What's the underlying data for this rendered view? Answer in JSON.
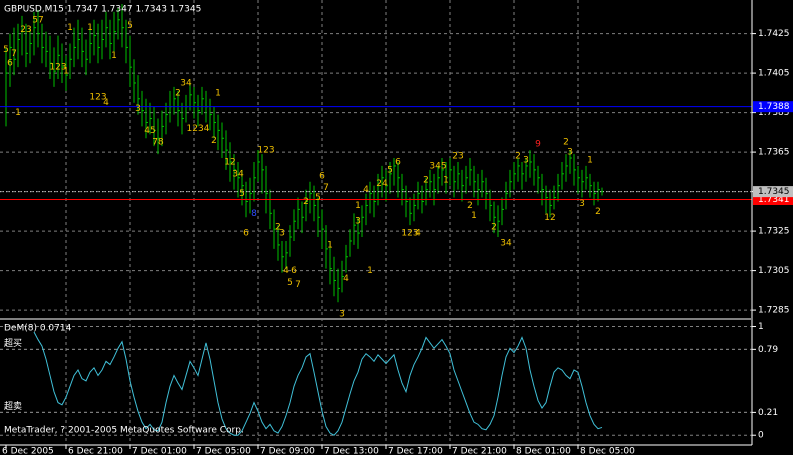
{
  "chart_data": [
    {
      "type": "ohlc",
      "title": "GBPUSD,M15  1.7347 1.7347 1.7343 1.7345",
      "color": "#00c000",
      "grid": true,
      "ylim": [
        1.7281,
        1.7441
      ],
      "yticks": [
        1.7425,
        1.7405,
        1.7385,
        1.7365,
        1.7345,
        1.7325,
        1.7305,
        1.7285
      ],
      "high": [
        1.7418,
        1.7425,
        1.7428,
        1.743,
        1.7434,
        1.743,
        1.7428,
        1.7436,
        1.7437,
        1.743,
        1.7426,
        1.7424,
        1.7418,
        1.7424,
        1.742,
        1.7414,
        1.742,
        1.7428,
        1.7432,
        1.7428,
        1.7422,
        1.7428,
        1.7432,
        1.743,
        1.7432,
        1.7436,
        1.7432,
        1.7436,
        1.7438,
        1.744,
        1.7432,
        1.7424,
        1.7412,
        1.7404,
        1.7396,
        1.7392,
        1.739,
        1.7388,
        1.7382,
        1.7386,
        1.739,
        1.7396,
        1.7398,
        1.7396,
        1.739,
        1.7394,
        1.74,
        1.7398,
        1.7394,
        1.7398,
        1.7396,
        1.7392,
        1.7388,
        1.7384,
        1.738,
        1.7376,
        1.737,
        1.7364,
        1.736,
        1.7356,
        1.735,
        1.7352,
        1.736,
        1.7366,
        1.7364,
        1.7358,
        1.7346,
        1.7336,
        1.7328,
        1.732,
        1.732,
        1.7328,
        1.7336,
        1.7342,
        1.734,
        1.7346,
        1.735,
        1.7348,
        1.7342,
        1.7336,
        1.7328,
        1.732,
        1.7312,
        1.7306,
        1.731,
        1.7318,
        1.7326,
        1.7334,
        1.7332,
        1.7338,
        1.7344,
        1.735,
        1.7348,
        1.7354,
        1.7358,
        1.7356,
        1.736,
        1.7362,
        1.736,
        1.7354,
        1.7348,
        1.7342,
        1.7344,
        1.735,
        1.7348,
        1.7352,
        1.7356,
        1.7354,
        1.7358,
        1.7362,
        1.736,
        1.7362,
        1.7358,
        1.736,
        1.7356,
        1.7358,
        1.7362,
        1.7358,
        1.7354,
        1.7356,
        1.7352,
        1.7346,
        1.734,
        1.7338,
        1.7342,
        1.735,
        1.7356,
        1.736,
        1.7362,
        1.736,
        1.7362,
        1.7366,
        1.7364,
        1.7358,
        1.7354,
        1.7348,
        1.7346,
        1.7348,
        1.7354,
        1.736,
        1.7364,
        1.7366,
        1.7364,
        1.7358,
        1.7356,
        1.7358,
        1.7354,
        1.735,
        1.735,
        1.7347
      ],
      "low": [
        1.7378,
        1.7398,
        1.7404,
        1.7408,
        1.7414,
        1.7408,
        1.741,
        1.7414,
        1.7418,
        1.741,
        1.7408,
        1.7402,
        1.7398,
        1.7402,
        1.74,
        1.7396,
        1.7402,
        1.7408,
        1.7412,
        1.7408,
        1.7404,
        1.741,
        1.7414,
        1.741,
        1.7412,
        1.7418,
        1.7412,
        1.7416,
        1.7422,
        1.7418,
        1.741,
        1.7398,
        1.739,
        1.7384,
        1.7378,
        1.7372,
        1.7374,
        1.7368,
        1.7364,
        1.7368,
        1.7374,
        1.738,
        1.7384,
        1.7378,
        1.7374,
        1.738,
        1.7386,
        1.7382,
        1.7378,
        1.7384,
        1.738,
        1.7376,
        1.7372,
        1.7366,
        1.7362,
        1.7356,
        1.735,
        1.7346,
        1.7342,
        1.7338,
        1.7332,
        1.7334,
        1.734,
        1.735,
        1.7344,
        1.7334,
        1.7326,
        1.7316,
        1.731,
        1.7304,
        1.7306,
        1.7312,
        1.732,
        1.7326,
        1.7324,
        1.733,
        1.7334,
        1.733,
        1.7322,
        1.7316,
        1.7306,
        1.7298,
        1.7292,
        1.7289,
        1.7294,
        1.7304,
        1.7312,
        1.7318,
        1.7316,
        1.7322,
        1.7328,
        1.7334,
        1.7332,
        1.7338,
        1.7342,
        1.734,
        1.7344,
        1.7348,
        1.7342,
        1.7338,
        1.7332,
        1.7328,
        1.733,
        1.7336,
        1.7334,
        1.7338,
        1.7342,
        1.7338,
        1.7344,
        1.7348,
        1.7344,
        1.7348,
        1.7342,
        1.7346,
        1.734,
        1.7344,
        1.7348,
        1.7342,
        1.7338,
        1.7342,
        1.7336,
        1.733,
        1.7324,
        1.7322,
        1.7328,
        1.7336,
        1.7342,
        1.7346,
        1.735,
        1.7346,
        1.735,
        1.7352,
        1.7348,
        1.7344,
        1.7338,
        1.7334,
        1.7332,
        1.7336,
        1.734,
        1.7346,
        1.735,
        1.7354,
        1.7348,
        1.7344,
        1.7342,
        1.7346,
        1.7342,
        1.7338,
        1.734,
        1.7343
      ],
      "close": [
        1.7405,
        1.7418,
        1.7412,
        1.7422,
        1.7426,
        1.7415,
        1.742,
        1.7428,
        1.7425,
        1.7418,
        1.7416,
        1.741,
        1.7406,
        1.7414,
        1.7408,
        1.7404,
        1.7412,
        1.7418,
        1.7422,
        1.7416,
        1.7412,
        1.742,
        1.7424,
        1.7418,
        1.7422,
        1.7428,
        1.742,
        1.7426,
        1.7432,
        1.7428,
        1.7418,
        1.7408,
        1.74,
        1.7392,
        1.7386,
        1.738,
        1.7382,
        1.7376,
        1.7372,
        1.7378,
        1.7384,
        1.7388,
        1.7392,
        1.7386,
        1.7382,
        1.7388,
        1.7394,
        1.739,
        1.7386,
        1.7392,
        1.7388,
        1.7384,
        1.738,
        1.7376,
        1.7372,
        1.7366,
        1.736,
        1.7356,
        1.7352,
        1.7348,
        1.734,
        1.7344,
        1.7352,
        1.736,
        1.7356,
        1.7344,
        1.7334,
        1.7326,
        1.7318,
        1.7312,
        1.7314,
        1.7322,
        1.733,
        1.7336,
        1.7332,
        1.734,
        1.7344,
        1.7338,
        1.7332,
        1.7326,
        1.7316,
        1.7306,
        1.73,
        1.7296,
        1.7302,
        1.7312,
        1.732,
        1.7328,
        1.7324,
        1.7332,
        1.7338,
        1.7344,
        1.734,
        1.7348,
        1.7352,
        1.7348,
        1.7354,
        1.7358,
        1.7352,
        1.7346,
        1.734,
        1.7334,
        1.7338,
        1.7344,
        1.734,
        1.7346,
        1.735,
        1.7346,
        1.7352,
        1.7356,
        1.7352,
        1.7356,
        1.735,
        1.7354,
        1.7348,
        1.7352,
        1.7356,
        1.735,
        1.7346,
        1.735,
        1.7344,
        1.7338,
        1.7332,
        1.733,
        1.7336,
        1.7344,
        1.735,
        1.7354,
        1.7358,
        1.7354,
        1.7358,
        1.736,
        1.7356,
        1.7352,
        1.7346,
        1.7342,
        1.7338,
        1.7342,
        1.7348,
        1.7354,
        1.7358,
        1.7362,
        1.7356,
        1.7352,
        1.735,
        1.7352,
        1.7348,
        1.7344,
        1.7346,
        1.7345
      ],
      "hlines": [
        {
          "value": 1.7388,
          "label": "1.7388",
          "color": "#0000ff",
          "label_color": "#ffffff"
        },
        {
          "value": 1.7341,
          "label": "1.7341",
          "color": "#ff0000",
          "label_color": "#ffffff"
        },
        {
          "value": 1.7345,
          "label": "1.7345",
          "color": "#c0c0c0",
          "label_color": "#000000"
        }
      ],
      "annotation_color": "#f0c000",
      "annotations": [
        {
          "text": "23",
          "x": 5,
          "y": 1.7427
        },
        {
          "text": "57",
          "x": 8,
          "y": 1.7432
        },
        {
          "text": "5",
          "x": 0,
          "y": 1.7417
        },
        {
          "text": "7",
          "x": 2,
          "y": 1.7415
        },
        {
          "text": "6",
          "x": 1,
          "y": 1.741
        },
        {
          "text": "1",
          "x": 3,
          "y": 1.7385
        },
        {
          "text": "1",
          "x": 16,
          "y": 1.7428
        },
        {
          "text": "1",
          "x": 21,
          "y": 1.7428
        },
        {
          "text": "123",
          "x": 13,
          "y": 1.7408
        },
        {
          "text": "1",
          "x": 15,
          "y": 1.7406
        },
        {
          "text": "123",
          "x": 23,
          "y": 1.7393
        },
        {
          "text": "4",
          "x": 25,
          "y": 1.739
        },
        {
          "text": "1",
          "x": 27,
          "y": 1.7414
        },
        {
          "text": "5",
          "x": 31,
          "y": 1.7429
        },
        {
          "text": "3",
          "x": 33,
          "y": 1.7387
        },
        {
          "text": "45",
          "x": 36,
          "y": 1.7376
        },
        {
          "text": "78",
          "x": 38,
          "y": 1.737
        },
        {
          "text": "2",
          "x": 43,
          "y": 1.7395
        },
        {
          "text": "34",
          "x": 45,
          "y": 1.74
        },
        {
          "text": "1234",
          "x": 48,
          "y": 1.7377
        },
        {
          "text": "1",
          "x": 53,
          "y": 1.7395
        },
        {
          "text": "2",
          "x": 52,
          "y": 1.7371
        },
        {
          "text": "12",
          "x": 56,
          "y": 1.736
        },
        {
          "text": "34",
          "x": 58,
          "y": 1.7354
        },
        {
          "text": "123",
          "x": 65,
          "y": 1.7366
        },
        {
          "text": "5",
          "x": 59,
          "y": 1.7344
        },
        {
          "text": "8",
          "x": 62,
          "y": 1.7334,
          "color": "#3050ff"
        },
        {
          "text": "6",
          "x": 60,
          "y": 1.7324
        },
        {
          "text": "2",
          "x": 68,
          "y": 1.7327
        },
        {
          "text": "3",
          "x": 69,
          "y": 1.7324
        },
        {
          "text": "4",
          "x": 70,
          "y": 1.7305
        },
        {
          "text": "5",
          "x": 71,
          "y": 1.7299
        },
        {
          "text": "6",
          "x": 72,
          "y": 1.7305
        },
        {
          "text": "7",
          "x": 73,
          "y": 1.7298
        },
        {
          "text": "2",
          "x": 75,
          "y": 1.734
        },
        {
          "text": "5",
          "x": 78,
          "y": 1.7342
        },
        {
          "text": "6",
          "x": 79,
          "y": 1.7353
        },
        {
          "text": "7",
          "x": 80,
          "y": 1.7347
        },
        {
          "text": "1",
          "x": 81,
          "y": 1.7318
        },
        {
          "text": "3",
          "x": 84,
          "y": 1.7283
        },
        {
          "text": "4",
          "x": 85,
          "y": 1.7301
        },
        {
          "text": "1",
          "x": 88,
          "y": 1.7338
        },
        {
          "text": "3",
          "x": 88,
          "y": 1.733
        },
        {
          "text": "1",
          "x": 91,
          "y": 1.7305
        },
        {
          "text": "4",
          "x": 90,
          "y": 1.7346
        },
        {
          "text": "24",
          "x": 94,
          "y": 1.7349
        },
        {
          "text": "5",
          "x": 96,
          "y": 1.7356
        },
        {
          "text": "6",
          "x": 98,
          "y": 1.736
        },
        {
          "text": "123",
          "x": 101,
          "y": 1.7324
        },
        {
          "text": "4",
          "x": 103,
          "y": 1.7324
        },
        {
          "text": "2",
          "x": 105,
          "y": 1.7351
        },
        {
          "text": "345",
          "x": 108,
          "y": 1.7358
        },
        {
          "text": "1",
          "x": 110,
          "y": 1.7351
        },
        {
          "text": "23",
          "x": 113,
          "y": 1.7363
        },
        {
          "text": "2",
          "x": 116,
          "y": 1.7338
        },
        {
          "text": "1",
          "x": 117,
          "y": 1.7333
        },
        {
          "text": "2",
          "x": 122,
          "y": 1.7327
        },
        {
          "text": "34",
          "x": 125,
          "y": 1.7319
        },
        {
          "text": "2",
          "x": 128,
          "y": 1.7363
        },
        {
          "text": "3",
          "x": 130,
          "y": 1.7361
        },
        {
          "text": "9",
          "x": 133,
          "y": 1.7369,
          "color": "#ff2020"
        },
        {
          "text": "12",
          "x": 136,
          "y": 1.7332
        },
        {
          "text": "2",
          "x": 140,
          "y": 1.737
        },
        {
          "text": "3",
          "x": 141,
          "y": 1.7365
        },
        {
          "text": "3",
          "x": 144,
          "y": 1.7339
        },
        {
          "text": "1",
          "x": 146,
          "y": 1.7361
        },
        {
          "text": "2",
          "x": 148,
          "y": 1.7335
        }
      ]
    },
    {
      "type": "line",
      "title": "DeM(8) 0.0714",
      "color": "#40c0d8",
      "grid": true,
      "ylim": [
        -0.09,
        1.06
      ],
      "yticks": [
        1,
        0.79,
        0.21,
        0
      ],
      "levels": [
        {
          "value": 0.79,
          "label": "超买"
        },
        {
          "value": 0.21,
          "label": "超卖"
        }
      ],
      "categories": [
        "6 Dec 2005",
        null,
        null,
        null,
        null,
        null,
        null,
        null,
        null,
        null,
        null,
        null,
        null,
        null,
        null,
        "6 Dec 21:00",
        null,
        null,
        null,
        null,
        null,
        null,
        null,
        null,
        null,
        null,
        null,
        null,
        null,
        null,
        null,
        "7 Dec 01:00",
        null,
        null,
        null,
        null,
        null,
        null,
        null,
        null,
        null,
        null,
        null,
        null,
        null,
        null,
        null,
        "7 Dec 05:00",
        null,
        null,
        null,
        null,
        null,
        null,
        null,
        null,
        null,
        null,
        null,
        null,
        null,
        null,
        null,
        "7 Dec 09:00",
        null,
        null,
        null,
        null,
        null,
        null,
        null,
        null,
        null,
        null,
        null,
        null,
        null,
        null,
        null,
        "7 Dec 13:00",
        null,
        null,
        null,
        null,
        null,
        null,
        null,
        null,
        null,
        null,
        null,
        null,
        null,
        null,
        null,
        "7 Dec 17:00",
        null,
        null,
        null,
        null,
        null,
        null,
        null,
        null,
        null,
        null,
        null,
        null,
        null,
        null,
        null,
        "7 Dec 21:00",
        null,
        null,
        null,
        null,
        null,
        null,
        null,
        null,
        null,
        null,
        null,
        null,
        null,
        null,
        null,
        "8 Dec 01:00",
        null,
        null,
        null,
        null,
        null,
        null,
        null,
        null,
        null,
        null,
        null,
        null,
        null,
        null,
        null,
        "8 Dec 05:00",
        null,
        null,
        null,
        null,
        null,
        null
      ],
      "values": [
        null,
        null,
        null,
        null,
        null,
        null,
        null,
        0.95,
        0.88,
        0.82,
        0.7,
        0.55,
        0.4,
        0.3,
        0.28,
        0.35,
        0.45,
        0.55,
        0.6,
        0.52,
        0.5,
        0.58,
        0.62,
        0.55,
        0.6,
        0.68,
        0.65,
        0.72,
        0.8,
        0.86,
        0.7,
        0.5,
        0.35,
        0.22,
        0.12,
        0.06,
        0.1,
        0.05,
        0.04,
        0.12,
        0.3,
        0.45,
        0.55,
        0.48,
        0.42,
        0.55,
        0.68,
        0.62,
        0.55,
        0.7,
        0.85,
        0.7,
        0.5,
        0.3,
        0.15,
        0.06,
        0.02,
        0.0,
        0.0,
        0.04,
        0.12,
        0.2,
        0.3,
        0.22,
        0.12,
        0.06,
        0.1,
        0.04,
        0.02,
        0.08,
        0.18,
        0.3,
        0.45,
        0.55,
        0.62,
        0.72,
        0.75,
        0.58,
        0.4,
        0.22,
        0.08,
        0.02,
        0.0,
        0.04,
        0.12,
        0.25,
        0.38,
        0.5,
        0.58,
        0.7,
        0.75,
        0.72,
        0.68,
        0.74,
        0.7,
        0.66,
        0.7,
        0.74,
        0.6,
        0.48,
        0.4,
        0.55,
        0.65,
        0.72,
        0.8,
        0.9,
        0.85,
        0.8,
        0.84,
        0.88,
        0.82,
        0.75,
        0.6,
        0.5,
        0.4,
        0.3,
        0.2,
        0.12,
        0.1,
        0.06,
        0.05,
        0.1,
        0.18,
        0.35,
        0.55,
        0.72,
        0.8,
        0.76,
        0.82,
        0.9,
        0.8,
        0.6,
        0.45,
        0.32,
        0.25,
        0.3,
        0.45,
        0.58,
        0.62,
        0.6,
        0.55,
        0.52,
        0.6,
        0.58,
        0.45,
        0.3,
        0.18,
        0.1,
        0.06,
        0.0714
      ],
      "footer": "MetaTrader, ? 2001-2005 MetaQuotes Software Corp."
    }
  ]
}
